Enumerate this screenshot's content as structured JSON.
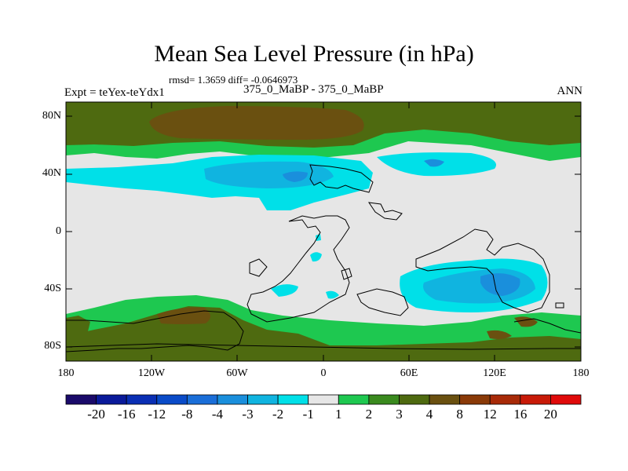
{
  "title": "Mean Sea Level Pressure (in hPa)",
  "stats": "rmsd= 1.3659 diff= -0.0646973",
  "expt_label": "Expt = teYex-teYdx1",
  "subtitle": "375_0_MaBP - 375_0_MaBP",
  "season": "ANN",
  "lat_labels": [
    "80N",
    "40N",
    "0",
    "40S",
    "80S"
  ],
  "lon_labels": [
    "180",
    "120W",
    "60W",
    "0",
    "60E",
    "120E",
    "180"
  ],
  "colorbar": {
    "labels": [
      "-20",
      "-16",
      "-12",
      "-8",
      "-4",
      "-3",
      "-2",
      "-1",
      "1",
      "2",
      "3",
      "4",
      "8",
      "12",
      "16",
      "20"
    ],
    "colors": [
      "#1a0a6a",
      "#0a1a9a",
      "#0a2fb4",
      "#0a4bc8",
      "#1a6ed8",
      "#1a8fdc",
      "#10b4e0",
      "#00e0e8",
      "#e6e6e6",
      "#1ec850",
      "#3a8a1e",
      "#4e6a10",
      "#6a5010",
      "#8a3a08",
      "#a82a08",
      "#c81a08",
      "#e00a0a"
    ]
  },
  "map_colors": {
    "ocean_neutral": "#e6e6e6",
    "green": "#1ec850",
    "olive": "#4e6a10",
    "brown": "#6a5010",
    "cyan": "#00e0e8",
    "light_blue": "#10b4e0",
    "blue": "#1a8fdc"
  }
}
